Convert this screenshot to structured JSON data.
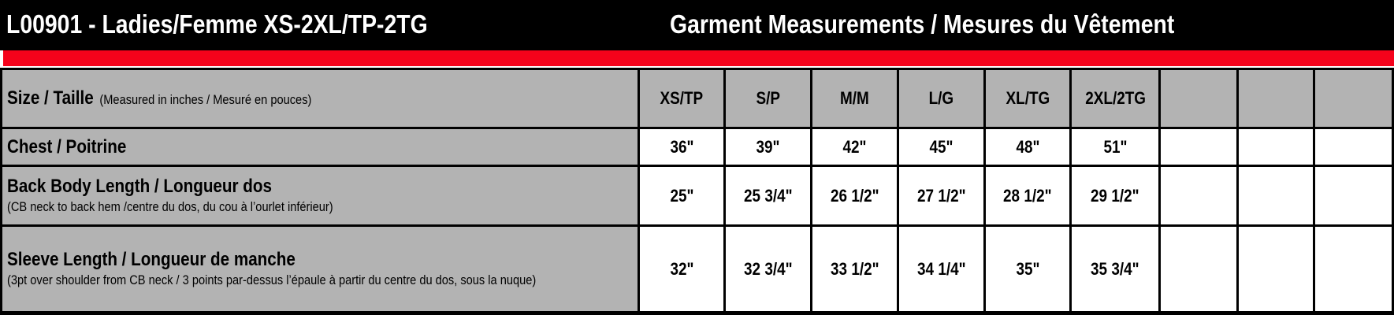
{
  "header": {
    "product_title": "L00901 - Ladies/Femme XS-2XL/TP-2TG",
    "section_title": "Garment Measurements / Mesures du Vêtement"
  },
  "colors": {
    "header_bg": "#000000",
    "accent_band": "#f5021b",
    "label_bg": "#b3b3b3"
  },
  "table": {
    "size_label": "Size / Taille",
    "size_note": "(Measured in inches / Mesuré en pouces)",
    "sizes": [
      "XS/TP",
      "S/P",
      "M/M",
      "L/G",
      "XL/TG",
      "2XL/2TG",
      "",
      "",
      ""
    ],
    "rows": [
      {
        "label": "Chest / Poitrine",
        "note": "",
        "values": [
          "36\"",
          "39\"",
          "42\"",
          "45\"",
          "48\"",
          "51\"",
          "",
          "",
          ""
        ]
      },
      {
        "label": "Back Body Length / Longueur dos",
        "note": "(CB neck to back hem /centre du dos, du cou à l’ourlet inférieur)",
        "values": [
          "25\"",
          "25 3/4\"",
          "26 1/2\"",
          "27 1/2\"",
          "28 1/2\"",
          "29 1/2\"",
          "",
          "",
          ""
        ]
      },
      {
        "label": "Sleeve Length / Longueur de manche",
        "note": "(3pt over shoulder from CB neck / 3 points par-dessus l’épaule à partir du centre du dos, sous la nuque)",
        "values": [
          "32\"",
          "32 3/4\"",
          "33 1/2\"",
          "34 1/4\"",
          "35\"",
          "35 3/4\"",
          "",
          "",
          ""
        ]
      }
    ]
  }
}
